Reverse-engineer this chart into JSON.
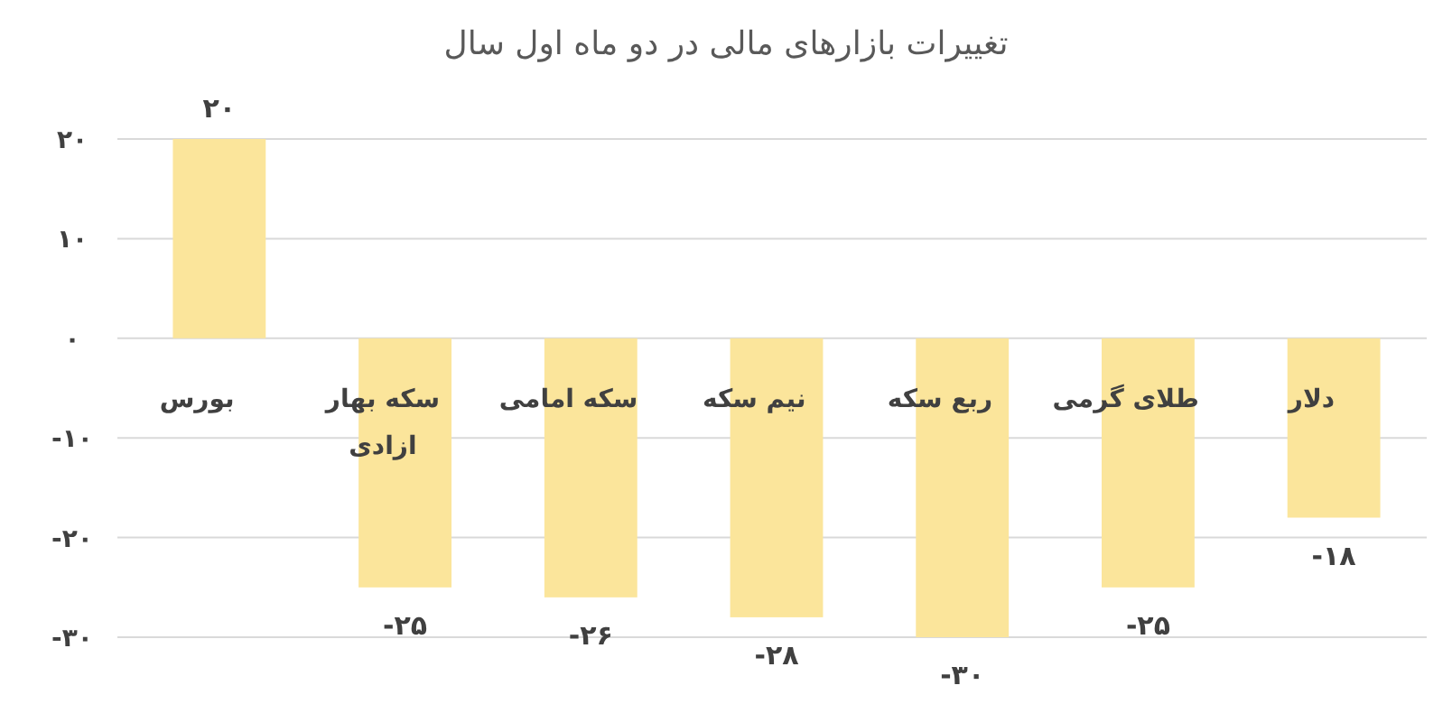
{
  "chart_data": {
    "type": "bar",
    "title": "تغییرات بازارهای مالی در دو ماه اول سال",
    "categories": [
      "بورس",
      "سکه بهار ازادی",
      "سکه امامی",
      "نیم سکه",
      "ربع سکه",
      "طلای گرمی",
      "دلار"
    ],
    "values": [
      20,
      -25,
      -26,
      -28,
      -30,
      -25,
      -18
    ],
    "value_labels": [
      "۲۰",
      "-۲۵",
      "-۲۶",
      "-۲۸",
      "-۳۰",
      "-۲۵",
      "-۱۸"
    ],
    "color": "#fbe59b",
    "ylim": [
      -30,
      20
    ],
    "yticks": [
      {
        "value": 20,
        "label": "۲۰"
      },
      {
        "value": 10,
        "label": "۱۰"
      },
      {
        "value": 0,
        "label": "۰"
      },
      {
        "value": -10,
        "label": "-۱۰"
      },
      {
        "value": -20,
        "label": "-۲۰"
      },
      {
        "value": -30,
        "label": "-۳۰"
      }
    ],
    "grid": "y"
  }
}
